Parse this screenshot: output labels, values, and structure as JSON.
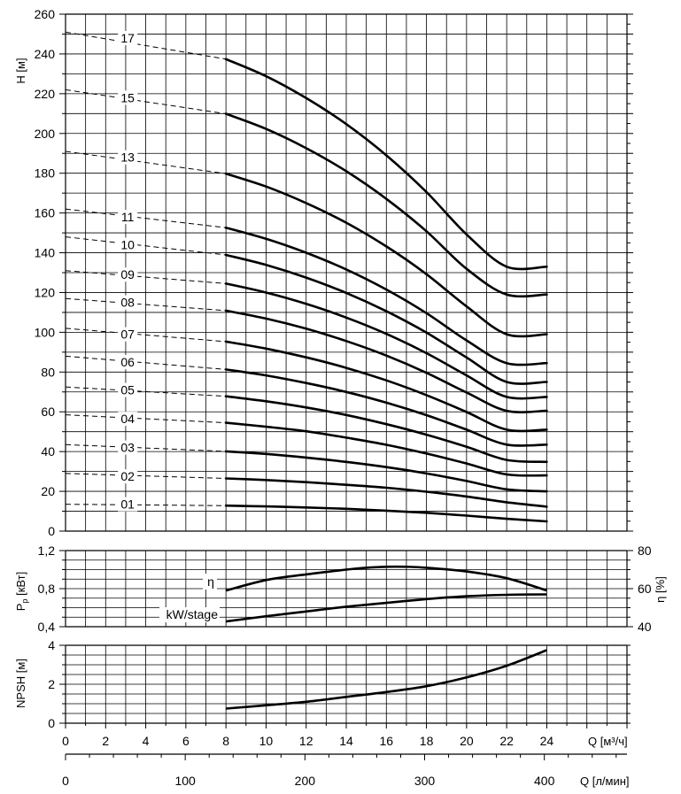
{
  "chart_data": [
    {
      "type": "line",
      "id": "head",
      "ylabel": "H [м]",
      "xlim": [
        0,
        28
      ],
      "ylim": [
        0,
        260
      ],
      "y_ticks": [
        0,
        20,
        40,
        60,
        80,
        100,
        120,
        140,
        160,
        180,
        200,
        220,
        240,
        260
      ],
      "y_tick_labels": [
        "0",
        "20",
        "40",
        "60",
        "80",
        "100",
        "120",
        "140",
        "160",
        "180",
        "200",
        "220",
        "240",
        "260"
      ],
      "grid": true,
      "series": [
        {
          "name": "01",
          "shutoff": 13.5,
          "y": [
            12.8,
            12.4,
            11.9,
            11.2,
            10.3,
            9.2,
            7.8,
            6.2,
            4.9
          ],
          "label_y": 13.5
        },
        {
          "name": "02",
          "shutoff": 29,
          "y": [
            26.5,
            25.7,
            24.6,
            23.3,
            21.8,
            19.8,
            17.4,
            14.5,
            12.3
          ],
          "label_y": 27.5
        },
        {
          "name": "03",
          "shutoff": 43.5,
          "y": [
            40.1,
            38.8,
            37.0,
            34.8,
            32.2,
            29.0,
            25.2,
            21.0,
            20.0
          ],
          "label_y": 42
        },
        {
          "name": "04",
          "shutoff": 58.5,
          "y": [
            54.5,
            52.5,
            50.2,
            47.0,
            43.4,
            39.0,
            34.0,
            28.5,
            28.0
          ],
          "label_y": 56.5
        },
        {
          "name": "05",
          "shutoff": 72.5,
          "y": [
            67.8,
            65.3,
            62.2,
            58.4,
            53.8,
            48.5,
            42.4,
            35.8,
            34.8
          ],
          "label_y": 71
        },
        {
          "name": "06",
          "shutoff": 88,
          "y": [
            81.3,
            78.3,
            74.5,
            70.0,
            64.6,
            58.3,
            51.0,
            43.5,
            43.5
          ],
          "label_y": 85
        },
        {
          "name": "07",
          "shutoff": 102,
          "y": [
            95.3,
            91.8,
            87.4,
            82.1,
            75.8,
            68.4,
            59.9,
            51.0,
            51.0
          ],
          "label_y": 99
        },
        {
          "name": "08",
          "shutoff": 117,
          "y": [
            110.9,
            106.9,
            101.8,
            95.6,
            88.3,
            79.6,
            69.7,
            60.5,
            60.5
          ],
          "label_y": 115
        },
        {
          "name": "09",
          "shutoff": 131,
          "y": [
            124.5,
            120.0,
            114.3,
            107.4,
            99.2,
            89.5,
            78.3,
            67.5,
            67.5
          ],
          "label_y": 129
        },
        {
          "name": "10",
          "shutoff": 148,
          "y": [
            138.9,
            133.9,
            127.5,
            119.8,
            110.6,
            99.8,
            87.3,
            75.0,
            75.0
          ],
          "label_y": 144
        },
        {
          "name": "11",
          "shutoff": 162,
          "y": [
            152.6,
            147.0,
            140.0,
            131.6,
            121.5,
            109.6,
            95.9,
            84.5,
            84.5
          ],
          "label_y": 158
        },
        {
          "name": "13",
          "shutoff": 191,
          "y": [
            179.8,
            173.3,
            165.0,
            155.1,
            143.2,
            129.2,
            113.0,
            99.0,
            99.0
          ],
          "label_y": 188
        },
        {
          "name": "15",
          "shutoff": 222,
          "y": [
            209.9,
            202.3,
            192.6,
            181.0,
            167.1,
            150.8,
            131.9,
            119.0,
            119.0
          ],
          "label_y": 218
        },
        {
          "name": "17",
          "shutoff": 251,
          "y": [
            237.4,
            228.8,
            217.8,
            204.7,
            189.0,
            170.5,
            149.2,
            133.0,
            133.0
          ],
          "label_y": 248
        }
      ]
    },
    {
      "type": "line",
      "id": "power_efficiency",
      "ylabel_left": "P",
      "ylabel_left_sub": "p",
      "ylabel_left_unit": "[кВт]",
      "ylabel_right": "η [%]",
      "ylim_left": [
        0.4,
        1.2
      ],
      "ylim_right": [
        40,
        80
      ],
      "y_ticks_left": [
        0.4,
        0.8,
        1.2
      ],
      "y_tick_labels_left": [
        "0,4",
        "0,8",
        "1,2"
      ],
      "y_ticks_right": [
        40,
        60,
        80
      ],
      "y_tick_labels_right": [
        "40",
        "60",
        "80"
      ],
      "grid": true,
      "series": [
        {
          "name": "η",
          "axis": "right",
          "x": [
            8,
            10,
            12,
            14,
            15,
            16,
            17,
            18,
            20,
            22,
            24
          ],
          "y": [
            59,
            64.5,
            67.5,
            70,
            71,
            71.5,
            71.5,
            71,
            69,
            65.5,
            59
          ]
        },
        {
          "name": "kW/stage",
          "axis": "left",
          "x": [
            8,
            10,
            12,
            14,
            16,
            18,
            20,
            22,
            24
          ],
          "y": [
            0.455,
            0.51,
            0.56,
            0.61,
            0.65,
            0.69,
            0.72,
            0.735,
            0.74
          ]
        }
      ]
    },
    {
      "type": "line",
      "id": "npsh",
      "ylabel": "NPSH [м]",
      "ylim": [
        0,
        4
      ],
      "y_ticks": [
        0,
        2,
        4
      ],
      "y_tick_labels": [
        "0",
        "2",
        "4"
      ],
      "grid": true,
      "series": [
        {
          "name": "NPSH",
          "x": [
            8,
            10,
            12,
            14,
            16,
            18,
            20,
            22,
            24
          ],
          "y": [
            0.75,
            0.92,
            1.1,
            1.35,
            1.6,
            1.9,
            2.35,
            2.95,
            3.75
          ]
        }
      ]
    },
    {
      "type": "axis",
      "id": "flow_axes",
      "x_m3h_label": "Q [м³/ч]",
      "x_m3h_ticks": [
        0,
        2,
        4,
        6,
        8,
        10,
        12,
        14,
        16,
        18,
        20,
        22,
        24
      ],
      "x_m3h_tick_labels": [
        "0",
        "2",
        "4",
        "6",
        "8",
        "10",
        "12",
        "14",
        "16",
        "18",
        "20",
        "22",
        "24"
      ],
      "x_lmin_label": "Q [л/мин]",
      "x_lmin_ticks": [
        0,
        100,
        200,
        300,
        400
      ],
      "x_lmin_tick_labels": [
        "0",
        "100",
        "200",
        "300",
        "400"
      ]
    }
  ]
}
